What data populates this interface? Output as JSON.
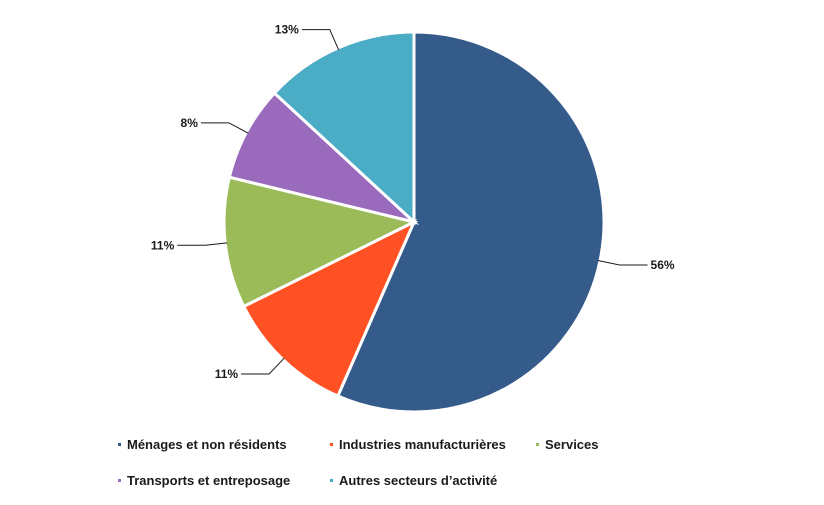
{
  "chart_data": {
    "type": "pie",
    "slices": [
      {
        "name": "Ménages et non résidents",
        "value": 56,
        "label": "56%",
        "color": "#355B8A"
      },
      {
        "name": "Industries manufacturières",
        "value": 11,
        "label": "11%",
        "color": "#FF5123"
      },
      {
        "name": "Services",
        "value": 11,
        "label": "11%",
        "color": "#9BBB59"
      },
      {
        "name": "Transports et entreposage",
        "value": 8,
        "label": "8%",
        "color": "#9A6BBD"
      },
      {
        "name": "Autres secteurs d’activité",
        "value": 13,
        "label": "13%",
        "color": "#4BACC6"
      }
    ],
    "legend_position": "bottom"
  }
}
